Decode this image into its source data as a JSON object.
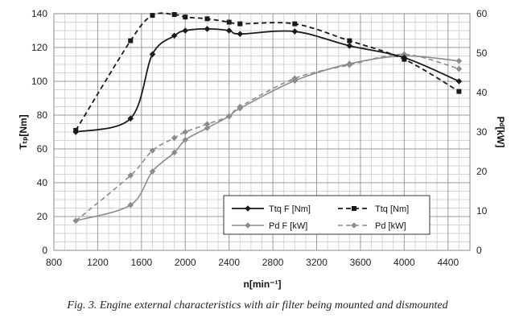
{
  "chart_data": {
    "type": "line",
    "title": "",
    "xlabel": "n[min⁻¹]",
    "ylabel_left": "Tₜₚ[Nm]",
    "ylabel_right": "Pᵈ[kW]",
    "xlim": [
      800,
      4600
    ],
    "ylim_left": [
      0,
      140
    ],
    "ylim_right": [
      0,
      60
    ],
    "x_ticks": [
      "800",
      "1200",
      "1600",
      "2000",
      "2400",
      "2800",
      "3200",
      "3600",
      "4000",
      "4400"
    ],
    "y_ticks_left": [
      "0",
      "20",
      "40",
      "60",
      "80",
      "100",
      "120",
      "140"
    ],
    "y_ticks_right": [
      "0",
      "10",
      "20",
      "30",
      "40",
      "50",
      "60"
    ],
    "grid": true,
    "legend_position": "lower-right",
    "colors": {
      "dark": "#1a1a1a",
      "gray": "#8c8c8c",
      "grid": "#bdbdbd"
    },
    "series": [
      {
        "name": "Ttq F [Nm]",
        "axis": "left",
        "style": "solid-diamond-dark",
        "x": [
          1000,
          1500,
          1700,
          1900,
          2000,
          2200,
          2400,
          2500,
          3000,
          3500,
          4000,
          4500
        ],
        "y": [
          70,
          78,
          116,
          127,
          130,
          131,
          130,
          128,
          129.5,
          121,
          114,
          100
        ]
      },
      {
        "name": "Ttq [Nm]",
        "axis": "left",
        "style": "dashed-square-dark",
        "x": [
          1000,
          1500,
          1700,
          1900,
          2000,
          2200,
          2400,
          2500,
          3000,
          3500,
          4000,
          4500
        ],
        "y": [
          71,
          124,
          139,
          139.5,
          138,
          137,
          135,
          134,
          134,
          124,
          113,
          94
        ]
      },
      {
        "name": "Pd F [kW]",
        "axis": "right",
        "style": "solid-diamond-gray",
        "x": [
          1000,
          1500,
          1700,
          1900,
          2000,
          2200,
          2400,
          2500,
          3000,
          3500,
          4000,
          4500
        ],
        "y": [
          7.5,
          11.5,
          20,
          24.8,
          28,
          31,
          34,
          36,
          43,
          47.3,
          49.3,
          48
        ]
      },
      {
        "name": "Pd [kW]",
        "axis": "right",
        "style": "dashed-diamond-gray",
        "x": [
          1000,
          1500,
          1700,
          1900,
          2000,
          2200,
          2400,
          2500,
          3000,
          3500,
          4000,
          4500
        ],
        "y": [
          7.5,
          19,
          25.3,
          28.5,
          30,
          32,
          34,
          36.4,
          43.6,
          47,
          49.7,
          46
        ]
      }
    ]
  },
  "caption": "Fig. 3. Engine external characteristics with air filter being mounted and dismounted"
}
